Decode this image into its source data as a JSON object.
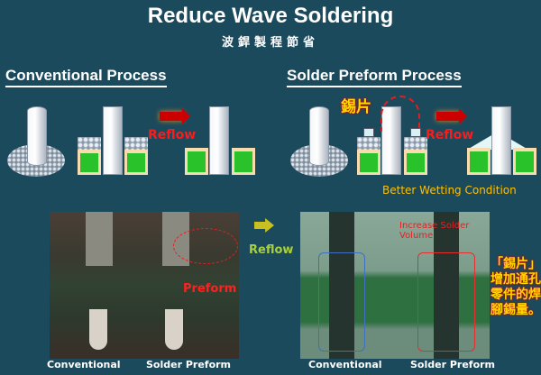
{
  "title": "Reduce Wave Soldering",
  "subtitle": "波銲製程節省",
  "conventional": {
    "heading": "Conventional Process",
    "reflow_label": "Reflow"
  },
  "preform": {
    "heading": "Solder Preform Process",
    "tin_label": "錫片",
    "reflow_label": "Reflow",
    "wetting_note": "Better Wetting Condition"
  },
  "photos": {
    "arrow_label": "Reflow",
    "preform_tag": "Preform",
    "volume_note": "Increase Solder Volume",
    "side_note": "「錫片」增加通孔零件的焊腳錫量。",
    "left_captions": [
      "Conventional",
      "Solder Preform"
    ],
    "right_captions": [
      "Conventional",
      "Solder Preform"
    ]
  },
  "colors": {
    "background": "#1b4a5c",
    "pad": "#2ac22a",
    "accent_red": "#ff1a1a",
    "note_yellow": "#ffc000"
  }
}
